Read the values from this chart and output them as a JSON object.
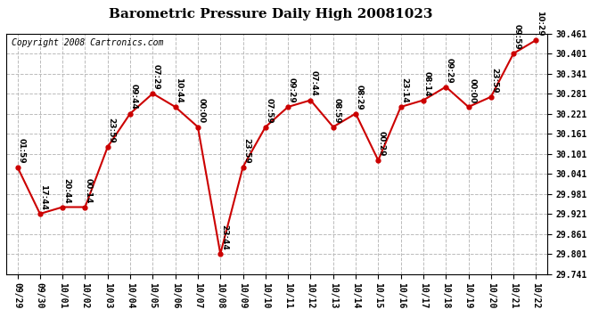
{
  "title": "Barometric Pressure Daily High 20081023",
  "copyright": "Copyright 2008 Cartronics.com",
  "x_labels": [
    "09/29",
    "09/30",
    "10/01",
    "10/02",
    "10/03",
    "10/04",
    "10/05",
    "10/06",
    "10/07",
    "10/08",
    "10/09",
    "10/10",
    "10/11",
    "10/12",
    "10/13",
    "10/14",
    "10/15",
    "10/16",
    "10/17",
    "10/18",
    "10/19",
    "10/20",
    "10/21",
    "10/22"
  ],
  "y_values": [
    30.061,
    29.921,
    29.941,
    29.941,
    30.121,
    30.221,
    30.281,
    30.241,
    30.181,
    29.801,
    30.061,
    30.181,
    30.241,
    30.261,
    30.181,
    30.221,
    30.081,
    30.241,
    30.261,
    30.301,
    30.241,
    30.271,
    30.401,
    30.441
  ],
  "point_labels": [
    "01:59",
    "17:44",
    "20:44",
    "00:14",
    "23:59",
    "09:44",
    "07:29",
    "10:44",
    "00:00",
    "23:44",
    "23:59",
    "07:59",
    "09:29",
    "07:44",
    "08:59",
    "08:29",
    "00:29",
    "23:14",
    "08:14",
    "09:29",
    "00:00",
    "23:59",
    "09:59",
    "10:29"
  ],
  "y_min": 29.741,
  "y_max": 30.461,
  "y_step": 0.06,
  "line_color": "#cc0000",
  "marker_color": "#cc0000",
  "bg_color": "#ffffff",
  "grid_color": "#bbbbbb",
  "title_fontsize": 11,
  "copyright_fontsize": 7,
  "label_fontsize": 6.5,
  "tick_fontsize": 7
}
